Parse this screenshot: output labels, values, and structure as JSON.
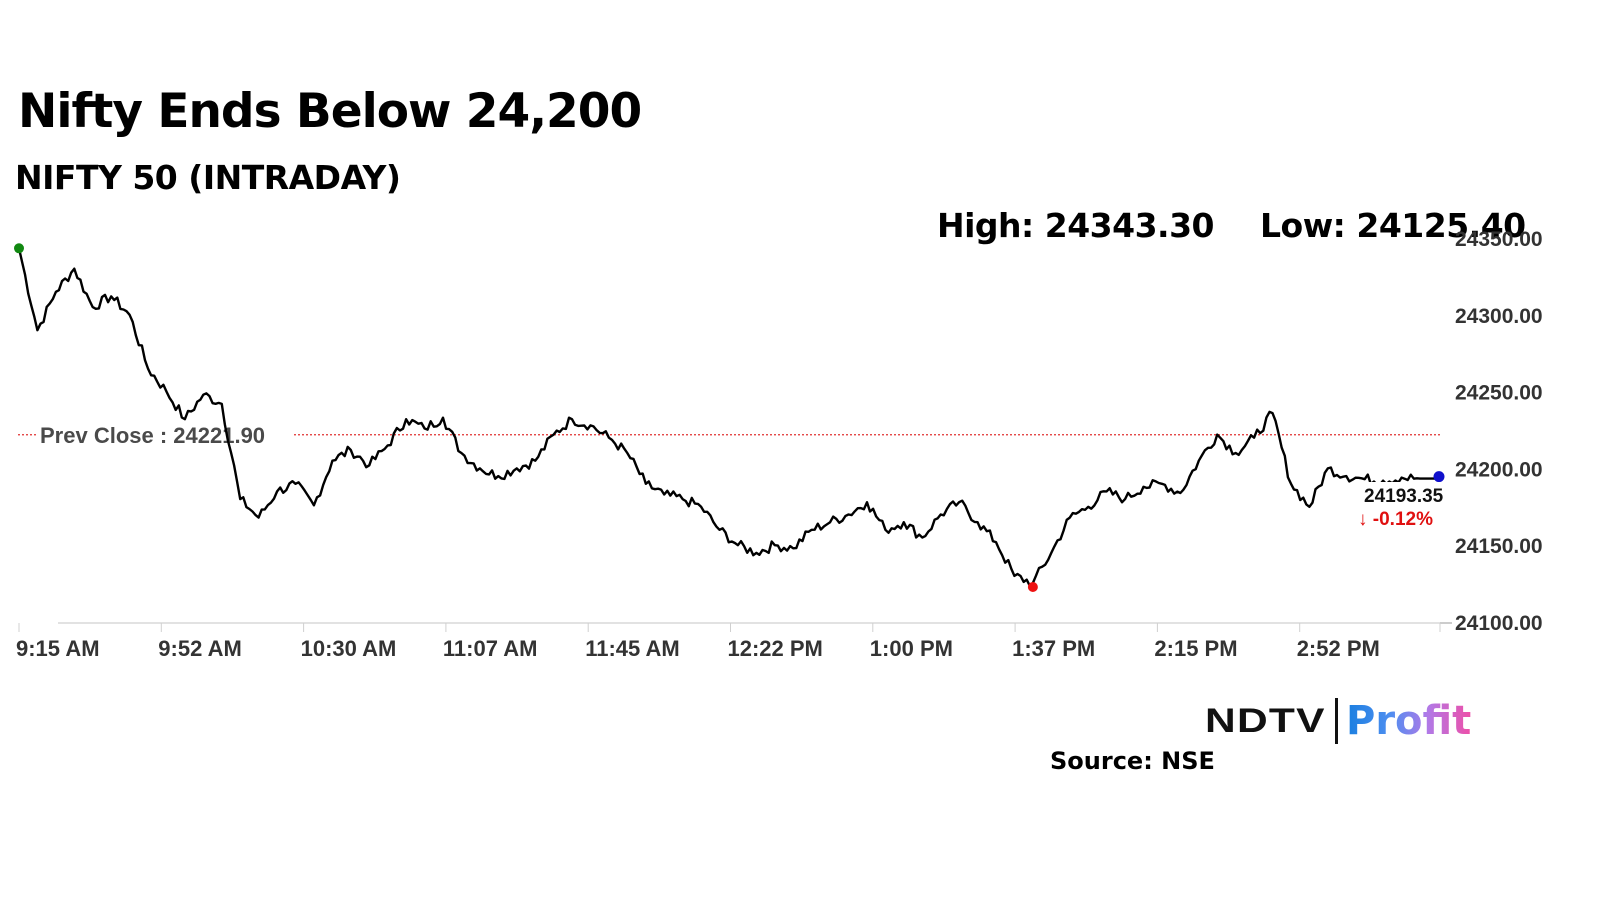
{
  "header": {
    "title": "Nifty Ends Below 24,200",
    "subtitle": "NIFTY 50 (INTRADAY)",
    "high_label": "High: 24343.30",
    "low_label": "Low: 24125.40"
  },
  "annotations": {
    "prev_close_label": "Prev Close : 24221.90",
    "last_value": "24193.35",
    "change": "↓ -0.12%"
  },
  "footer": {
    "logo_left": "NDTV",
    "logo_right": "Profit",
    "source": "Source: NSE"
  },
  "colors": {
    "line": "#000000",
    "prev_close": "#e03030",
    "open_marker": "#118811",
    "low_marker": "#ee1111",
    "last_marker": "#1010cc",
    "change": "#e01010",
    "axis_text": "#333333"
  },
  "chart_data": {
    "type": "line",
    "title": "Nifty Ends Below 24,200",
    "subtitle": "NIFTY 50 (INTRADAY)",
    "xlabel": "",
    "ylabel": "",
    "ylim": [
      24100,
      24350
    ],
    "y_ticks": [
      "24100.00",
      "24150.00",
      "24200.00",
      "24250.00",
      "24300.00",
      "24350.00"
    ],
    "x_ticks": [
      "9:15 AM",
      "9:52 AM",
      "10:30 AM",
      "11:07 AM",
      "11:45 AM",
      "12:22 PM",
      "1:00 PM",
      "1:37 PM",
      "2:15 PM",
      "2:52 PM"
    ],
    "grid": false,
    "high": 24343.3,
    "low": 24125.4,
    "prev_close": 24221.9,
    "close": 24193.35,
    "change_pct": -0.12,
    "series": [
      {
        "name": "NIFTY 50",
        "x": [
          "9:15 AM",
          "9:16 AM",
          "9:20 AM",
          "9:25 AM",
          "9:30 AM",
          "9:35 AM",
          "9:40 AM",
          "9:45 AM",
          "9:50 AM",
          "9:55 AM",
          "10:00 AM",
          "10:05 AM",
          "10:10 AM",
          "10:15 AM",
          "10:20 AM",
          "10:25 AM",
          "10:30 AM",
          "10:35 AM",
          "10:40 AM",
          "10:45 AM",
          "10:50 AM",
          "10:55 AM",
          "11:00 AM",
          "11:05 AM",
          "11:10 AM",
          "11:15 AM",
          "11:20 AM",
          "11:25 AM",
          "11:30 AM",
          "11:35 AM",
          "11:40 AM",
          "11:45 AM",
          "11:50 AM",
          "11:55 AM",
          "12:00 PM",
          "12:05 PM",
          "12:10 PM",
          "12:15 PM",
          "12:20 PM",
          "12:25 PM",
          "12:30 PM",
          "12:35 PM",
          "12:40 PM",
          "12:45 PM",
          "12:50 PM",
          "12:55 PM",
          "1:00 PM",
          "1:05 PM",
          "1:10 PM",
          "1:15 PM",
          "1:20 PM",
          "1:25 PM",
          "1:30 PM",
          "1:35 PM",
          "1:40 PM",
          "1:45 PM",
          "1:50 PM",
          "1:55 PM",
          "2:00 PM",
          "2:05 PM",
          "2:10 PM",
          "2:15 PM",
          "2:20 PM",
          "2:25 PM",
          "2:30 PM",
          "2:35 PM",
          "2:40 PM",
          "2:45 PM",
          "2:50 PM",
          "2:55 PM",
          "3:00 PM",
          "3:05 PM",
          "3:10 PM",
          "3:15 PM",
          "3:20 PM",
          "3:25 PM",
          "3:30 PM"
        ],
        "values": [
          24343.3,
          24290,
          24315,
          24330,
          24305,
          24312,
          24300,
          24265,
          24250,
          24232,
          24248,
          24242,
          24180,
          24168,
          24185,
          24190,
          24176,
          24205,
          24212,
          24202,
          24215,
          24232,
          24226,
          24233,
          24210,
          24200,
          24195,
          24200,
          24205,
          24222,
          24232,
          24228,
          24220,
          24210,
          24190,
          24183,
          24180,
          24175,
          24160,
          24150,
          24145,
          24150,
          24148,
          24160,
          24165,
          24170,
          24178,
          24160,
          24165,
          24155,
          24170,
          24178,
          24165,
          24152,
          24130,
          24125.4,
          24145,
          24168,
          24175,
          24185,
          24180,
          24188,
          24190,
          24184,
          24205,
          24222,
          24210,
          24220,
          24236,
          24190,
          24175,
          24200,
          24195,
          24193,
          24192,
          24194,
          24193.35
        ]
      }
    ]
  }
}
